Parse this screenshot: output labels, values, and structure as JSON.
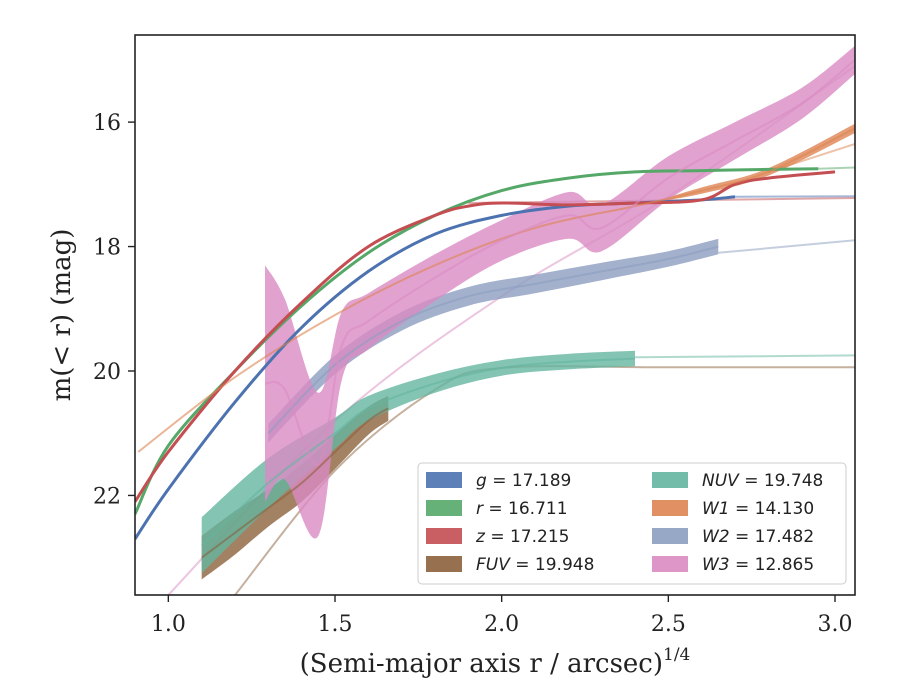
{
  "chart_data": {
    "type": "line",
    "xlabel": "(Semi-major axis r / arcsec)",
    "xlabel_exponent": "1/4",
    "ylabel": "m(< r) (mag)",
    "xlim": [
      0.9,
      3.06
    ],
    "ylim": [
      23.6,
      14.6
    ],
    "y_inverted": true,
    "grid": false,
    "legend_placement": "lower-right",
    "x_ticks": [
      "1.0",
      "1.5",
      "2.0",
      "2.5",
      "3.0"
    ],
    "x_tick_values": [
      1.0,
      1.5,
      2.0,
      2.5,
      3.0
    ],
    "y_ticks": [
      "16",
      "18",
      "20",
      "22"
    ],
    "y_tick_values": [
      16,
      18,
      20,
      22
    ],
    "series": [
      {
        "name": "g = 17.189",
        "prefix": "g",
        "value": "17.189",
        "color": "#4c72b0",
        "x": [
          0.9,
          1.0,
          1.2,
          1.4,
          1.6,
          1.8,
          2.0,
          2.2,
          2.4,
          2.6,
          2.7
        ],
        "y": [
          22.7,
          21.9,
          20.5,
          19.3,
          18.4,
          17.8,
          17.5,
          17.35,
          17.3,
          17.25,
          17.2
        ],
        "band_width": [
          0,
          0,
          0,
          0,
          0,
          0,
          0,
          0,
          0,
          0,
          0
        ],
        "model_x": [
          2.7,
          3.06
        ],
        "model_y": [
          17.2,
          17.19
        ]
      },
      {
        "name": "r = 16.711",
        "prefix": "r",
        "value": "16.711",
        "color": "#55a868",
        "x": [
          0.9,
          1.0,
          1.2,
          1.4,
          1.6,
          1.8,
          2.0,
          2.2,
          2.4,
          2.6,
          2.8,
          2.95
        ],
        "y": [
          22.3,
          21.2,
          20.0,
          18.95,
          18.1,
          17.5,
          17.1,
          16.9,
          16.8,
          16.78,
          16.76,
          16.75
        ],
        "band_width": [
          0,
          0,
          0,
          0,
          0,
          0,
          0,
          0,
          0,
          0,
          0,
          0
        ],
        "model_x": [
          2.95,
          3.06
        ],
        "model_y": [
          16.75,
          16.73
        ]
      },
      {
        "name": "z = 17.215",
        "prefix": "z",
        "value": "17.215",
        "color": "#c44e52",
        "x": [
          0.9,
          1.0,
          1.2,
          1.4,
          1.6,
          1.8,
          1.9,
          2.0,
          2.2,
          2.4,
          2.6,
          2.7,
          2.8,
          3.0
        ],
        "y": [
          22.1,
          21.3,
          20.0,
          18.9,
          18.0,
          17.5,
          17.35,
          17.3,
          17.33,
          17.3,
          17.25,
          17.0,
          16.9,
          16.8
        ],
        "band_width": [
          0,
          0,
          0,
          0,
          0,
          0,
          0,
          0,
          0,
          0,
          0,
          0,
          0,
          0
        ],
        "model_x": [
          1.9,
          3.06
        ],
        "model_y": [
          17.3,
          17.22
        ]
      },
      {
        "name": "FUV = 19.948",
        "prefix": "FUV",
        "value": "19.948",
        "color": "#8c613c",
        "x": [
          1.1,
          1.2,
          1.3,
          1.4,
          1.5,
          1.6,
          1.66
        ],
        "y": [
          23.0,
          22.6,
          22.2,
          21.8,
          21.3,
          20.8,
          20.6
        ],
        "band_width": [
          0.7,
          0.7,
          0.6,
          0.6,
          0.55,
          0.45,
          0.4
        ],
        "model_x": [
          1.2,
          1.5,
          1.8,
          2.0,
          2.5,
          3.06
        ],
        "model_y": [
          23.6,
          21.6,
          20.3,
          19.95,
          19.94,
          19.94
        ]
      },
      {
        "name": "NUV = 19.748",
        "prefix": "NUV",
        "value": "19.748",
        "color": "#64b5a0",
        "x": [
          1.1,
          1.3,
          1.5,
          1.6,
          1.8,
          2.0,
          2.2,
          2.4
        ],
        "y": [
          22.8,
          21.8,
          21.0,
          20.6,
          20.2,
          19.95,
          19.85,
          19.8
        ],
        "band_width": [
          0.9,
          0.8,
          0.5,
          0.4,
          0.3,
          0.25,
          0.25,
          0.25
        ],
        "model_x": [
          2.4,
          3.06
        ],
        "model_y": [
          19.78,
          19.75
        ]
      },
      {
        "name": "W1 = 14.130",
        "prefix": "W1",
        "value": "14.130",
        "color": "#dd8452",
        "x": [
          0.91,
          1.2,
          1.5,
          1.8,
          2.1,
          2.4,
          2.6,
          2.8,
          3.06
        ],
        "y": [
          21.3,
          20.1,
          19.1,
          18.3,
          17.7,
          17.35,
          17.1,
          16.8,
          16.1
        ],
        "band_width": [
          0,
          0,
          0,
          0,
          0,
          0,
          0.1,
          0.12,
          0.15
        ],
        "model_x": [
          2.8,
          3.06
        ],
        "model_y": [
          16.8,
          16.35
        ]
      },
      {
        "name": "W2 = 17.482",
        "prefix": "W2",
        "value": "17.482",
        "color": "#8c9ec0",
        "x": [
          1.3,
          1.5,
          1.7,
          1.9,
          2.1,
          2.3,
          2.5,
          2.65
        ],
        "y": [
          21.0,
          19.9,
          19.2,
          18.8,
          18.6,
          18.4,
          18.2,
          18.0
        ],
        "band_width": [
          0.3,
          0.3,
          0.3,
          0.3,
          0.3,
          0.28,
          0.25,
          0.25
        ],
        "model_x": [
          2.65,
          3.06
        ],
        "model_y": [
          18.1,
          17.9
        ]
      },
      {
        "name": "W3 = 12.865",
        "prefix": "W3",
        "value": "12.865",
        "color": "#da8bc3",
        "x": [
          1.29,
          1.35,
          1.45,
          1.52,
          1.6,
          1.8,
          2.0,
          2.2,
          2.3,
          2.5,
          2.7,
          2.9,
          3.06
        ],
        "y": [
          20.2,
          20.3,
          21.5,
          19.6,
          19.2,
          18.5,
          17.9,
          17.5,
          17.7,
          16.9,
          16.3,
          15.7,
          15.0
        ],
        "band_width": [
          3.8,
          2.9,
          2.3,
          1.1,
          0.9,
          0.75,
          0.65,
          0.75,
          0.75,
          0.7,
          0.6,
          0.5,
          0.45
        ],
        "model_x": [
          1.0,
          1.5,
          2.0,
          2.5,
          3.06
        ],
        "model_y": [
          23.6,
          20.8,
          18.8,
          17.2,
          15.1
        ]
      }
    ]
  }
}
